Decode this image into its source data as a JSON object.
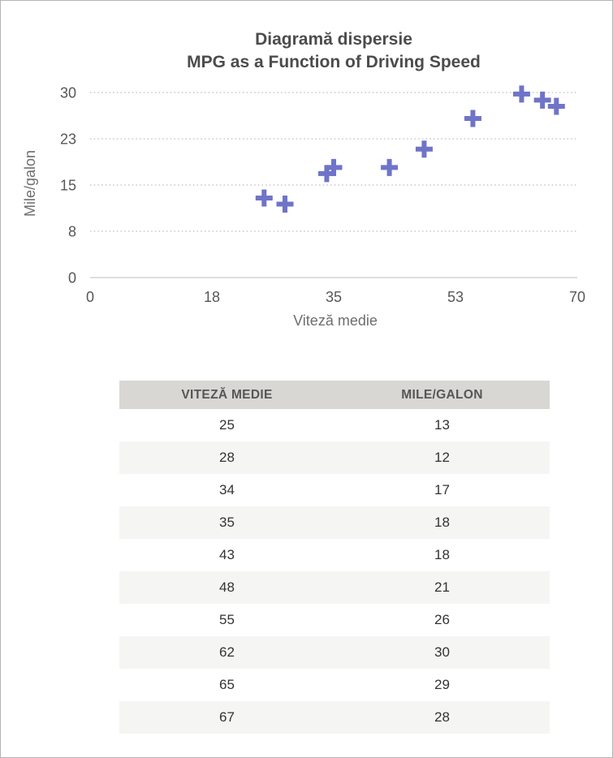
{
  "chart_data": {
    "type": "scatter",
    "title": "Diagramă dispersie",
    "subtitle": "MPG as a Function of Driving Speed",
    "xlabel": "Viteză medie",
    "ylabel": "Mile/galon",
    "x": [
      25,
      28,
      34,
      35,
      43,
      48,
      55,
      62,
      65,
      67
    ],
    "y": [
      13,
      12,
      17,
      18,
      18,
      21,
      26,
      30,
      29,
      28
    ],
    "xlim": [
      0,
      70
    ],
    "ylim": [
      0,
      30.25
    ],
    "x_tick_labels": [
      "0",
      "18",
      "35",
      "53",
      "70"
    ],
    "y_tick_labels": [
      "0",
      "8",
      "15",
      "23",
      "30"
    ],
    "grid": "horizontal-dotted",
    "legend": "none",
    "marker": "plus",
    "marker_color": "#6f74c8"
  },
  "colors": {
    "marker": "#6f74c8",
    "table_header_bg": "#d8d7d3",
    "table_stripe_bg": "#f5f5f3",
    "gridline": "#c7c7c7",
    "frame_border": "#b5b5b5"
  },
  "table": {
    "headers": [
      "VITEZĂ MEDIE",
      "MILE/GALON"
    ],
    "rows": [
      [
        "25",
        "13"
      ],
      [
        "28",
        "12"
      ],
      [
        "34",
        "17"
      ],
      [
        "35",
        "18"
      ],
      [
        "43",
        "18"
      ],
      [
        "48",
        "21"
      ],
      [
        "55",
        "26"
      ],
      [
        "62",
        "30"
      ],
      [
        "65",
        "29"
      ],
      [
        "67",
        "28"
      ]
    ]
  }
}
